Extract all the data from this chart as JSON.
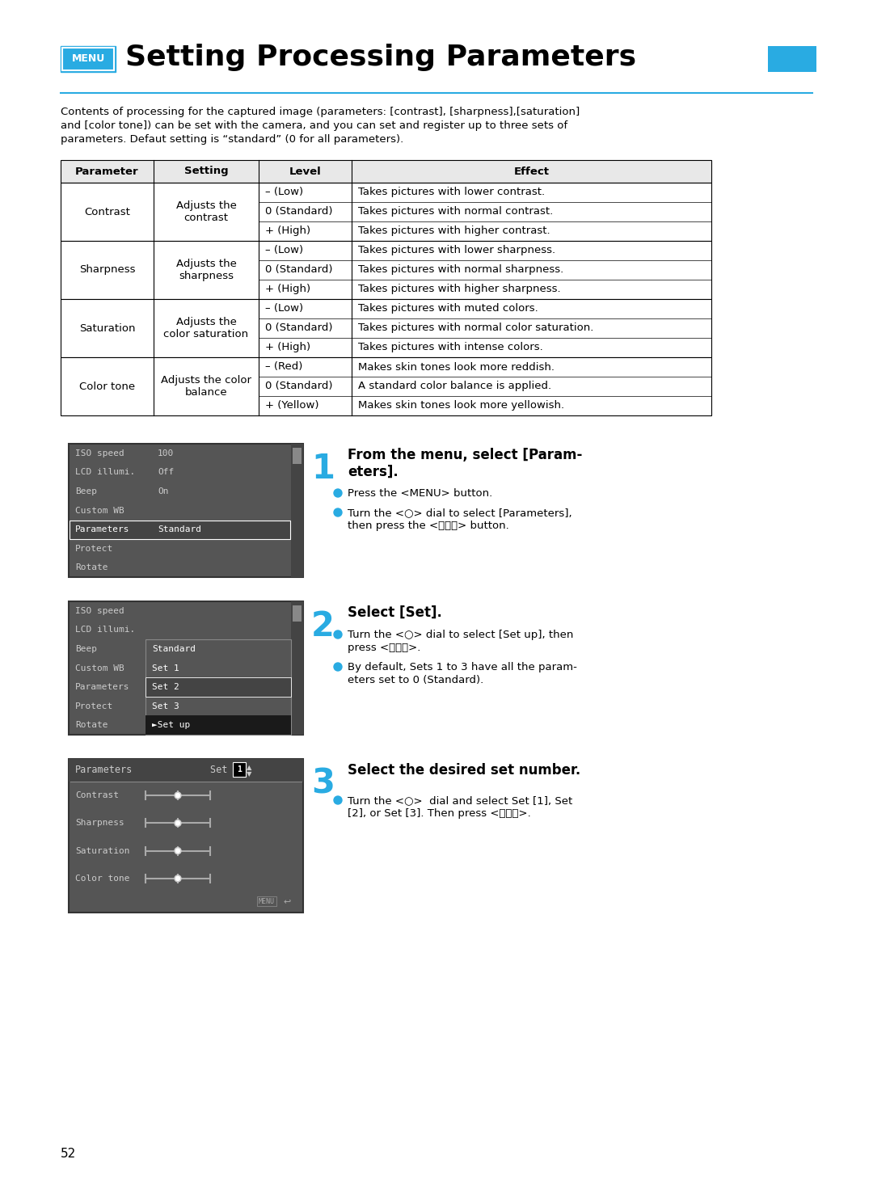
{
  "title": "Setting Processing Parameters",
  "menu_label": "MENU",
  "title_color": "#000000",
  "menu_bg": "#29ABE2",
  "menu_text_color": "#ffffff",
  "cyan_bar_color": "#29ABE2",
  "description": "Contents of processing for the captured image (parameters: [contrast], [sharpness],[saturation]\nand [color tone]) can be set with the camera, and you can set and register up to three sets of\nparameters. Defaut setting is “standard” (0 for all parameters).",
  "table_headers": [
    "Parameter",
    "Setting",
    "Level",
    "Effect"
  ],
  "table_data": [
    [
      "Contrast",
      "Adjusts the\ncontrast",
      "– (Low)",
      "Takes pictures with lower contrast."
    ],
    [
      "Contrast",
      "Adjusts the\ncontrast",
      "0 (Standard)",
      "Takes pictures with normal contrast."
    ],
    [
      "Contrast",
      "Adjusts the\ncontrast",
      "+ (High)",
      "Takes pictures with higher contrast."
    ],
    [
      "Sharpness",
      "Adjusts the\nsharpness",
      "– (Low)",
      "Takes pictures with lower sharpness."
    ],
    [
      "Sharpness",
      "Adjusts the\nsharpness",
      "0 (Standard)",
      "Takes pictures with normal sharpness."
    ],
    [
      "Sharpness",
      "Adjusts the\nsharpness",
      "+ (High)",
      "Takes pictures with higher sharpness."
    ],
    [
      "Saturation",
      "Adjusts the\ncolor saturation",
      "– (Low)",
      "Takes pictures with muted colors."
    ],
    [
      "Saturation",
      "Adjusts the\ncolor saturation",
      "0 (Standard)",
      "Takes pictures with normal color saturation."
    ],
    [
      "Saturation",
      "Adjusts the\ncolor saturation",
      "+ (High)",
      "Takes pictures with intense colors."
    ],
    [
      "Color tone",
      "Adjusts the color\nbalance",
      "– (Red)",
      "Makes skin tones look more reddish."
    ],
    [
      "Color tone",
      "Adjusts the color\nbalance",
      "0 (Standard)",
      "A standard color balance is applied."
    ],
    [
      "Color tone",
      "Adjusts the color\nbalance",
      "+ (Yellow)",
      "Makes skin tones look more yellowish."
    ]
  ],
  "screen1_rows": [
    {
      "label": "ISO speed",
      "value": "100",
      "highlight": false
    },
    {
      "label": "LCD illumi.",
      "value": "Off",
      "highlight": false
    },
    {
      "label": "Beep",
      "value": "On",
      "highlight": false
    },
    {
      "label": "Custom WB",
      "value": "",
      "highlight": false
    },
    {
      "label": "Parameters",
      "value": "Standard",
      "highlight": true
    },
    {
      "label": "Protect",
      "value": "",
      "highlight": false
    },
    {
      "label": "Rotate",
      "value": "",
      "highlight": false
    }
  ],
  "screen2_rows": [
    {
      "label": "ISO speed",
      "value": "",
      "highlight": false
    },
    {
      "label": "LCD illumi.",
      "value": "",
      "highlight": false
    },
    {
      "label": "Beep",
      "value": "Standard",
      "highlight": false,
      "popup": true
    },
    {
      "label": "Custom WB",
      "value": "Set 1",
      "highlight": false,
      "popup": true
    },
    {
      "label": "Parameters",
      "value": "Set 2",
      "highlight": true,
      "popup": true
    },
    {
      "label": "Protect",
      "value": "Set 3",
      "highlight": false,
      "popup": true
    },
    {
      "label": "Rotate",
      "value": "►Set up",
      "highlight": false,
      "popup": true,
      "arrow": true
    }
  ],
  "screen3_title": "Parameters",
  "screen3_set": "Set 1",
  "screen3_rows": [
    {
      "label": "Contrast"
    },
    {
      "label": "Sharpness"
    },
    {
      "label": "Saturation"
    },
    {
      "label": "Color tone"
    }
  ],
  "step1_title": "From the menu, select [Param-\neters].",
  "step1_bullets": [
    "Press the <MENU> button.",
    "Turn the <○> dial to select [Parameters],\nthen press the <ⓈⓉⓊ> button."
  ],
  "step2_title": "Select [Set].",
  "step2_bullets": [
    "Turn the <○> dial to select [Set up], then\npress <ⓈⓉⓊ>.",
    "By default, Sets 1 to 3 have all the param-\neters set to 0 (Standard)."
  ],
  "step3_title": "Select the desired set number.",
  "step3_bullets": [
    "Turn the <○>  dial and select Set [1], Set\n[2], or Set [3]. Then press <ⓈⓉⓊ>."
  ],
  "page_number": "52",
  "bg_color": "#ffffff",
  "screen_bg": "#555555",
  "screen_highlight_bg": "#333333",
  "screen_text_color": "#cccccc",
  "screen_highlight_text": "#ffffff",
  "cyan_color": "#29ABE2"
}
